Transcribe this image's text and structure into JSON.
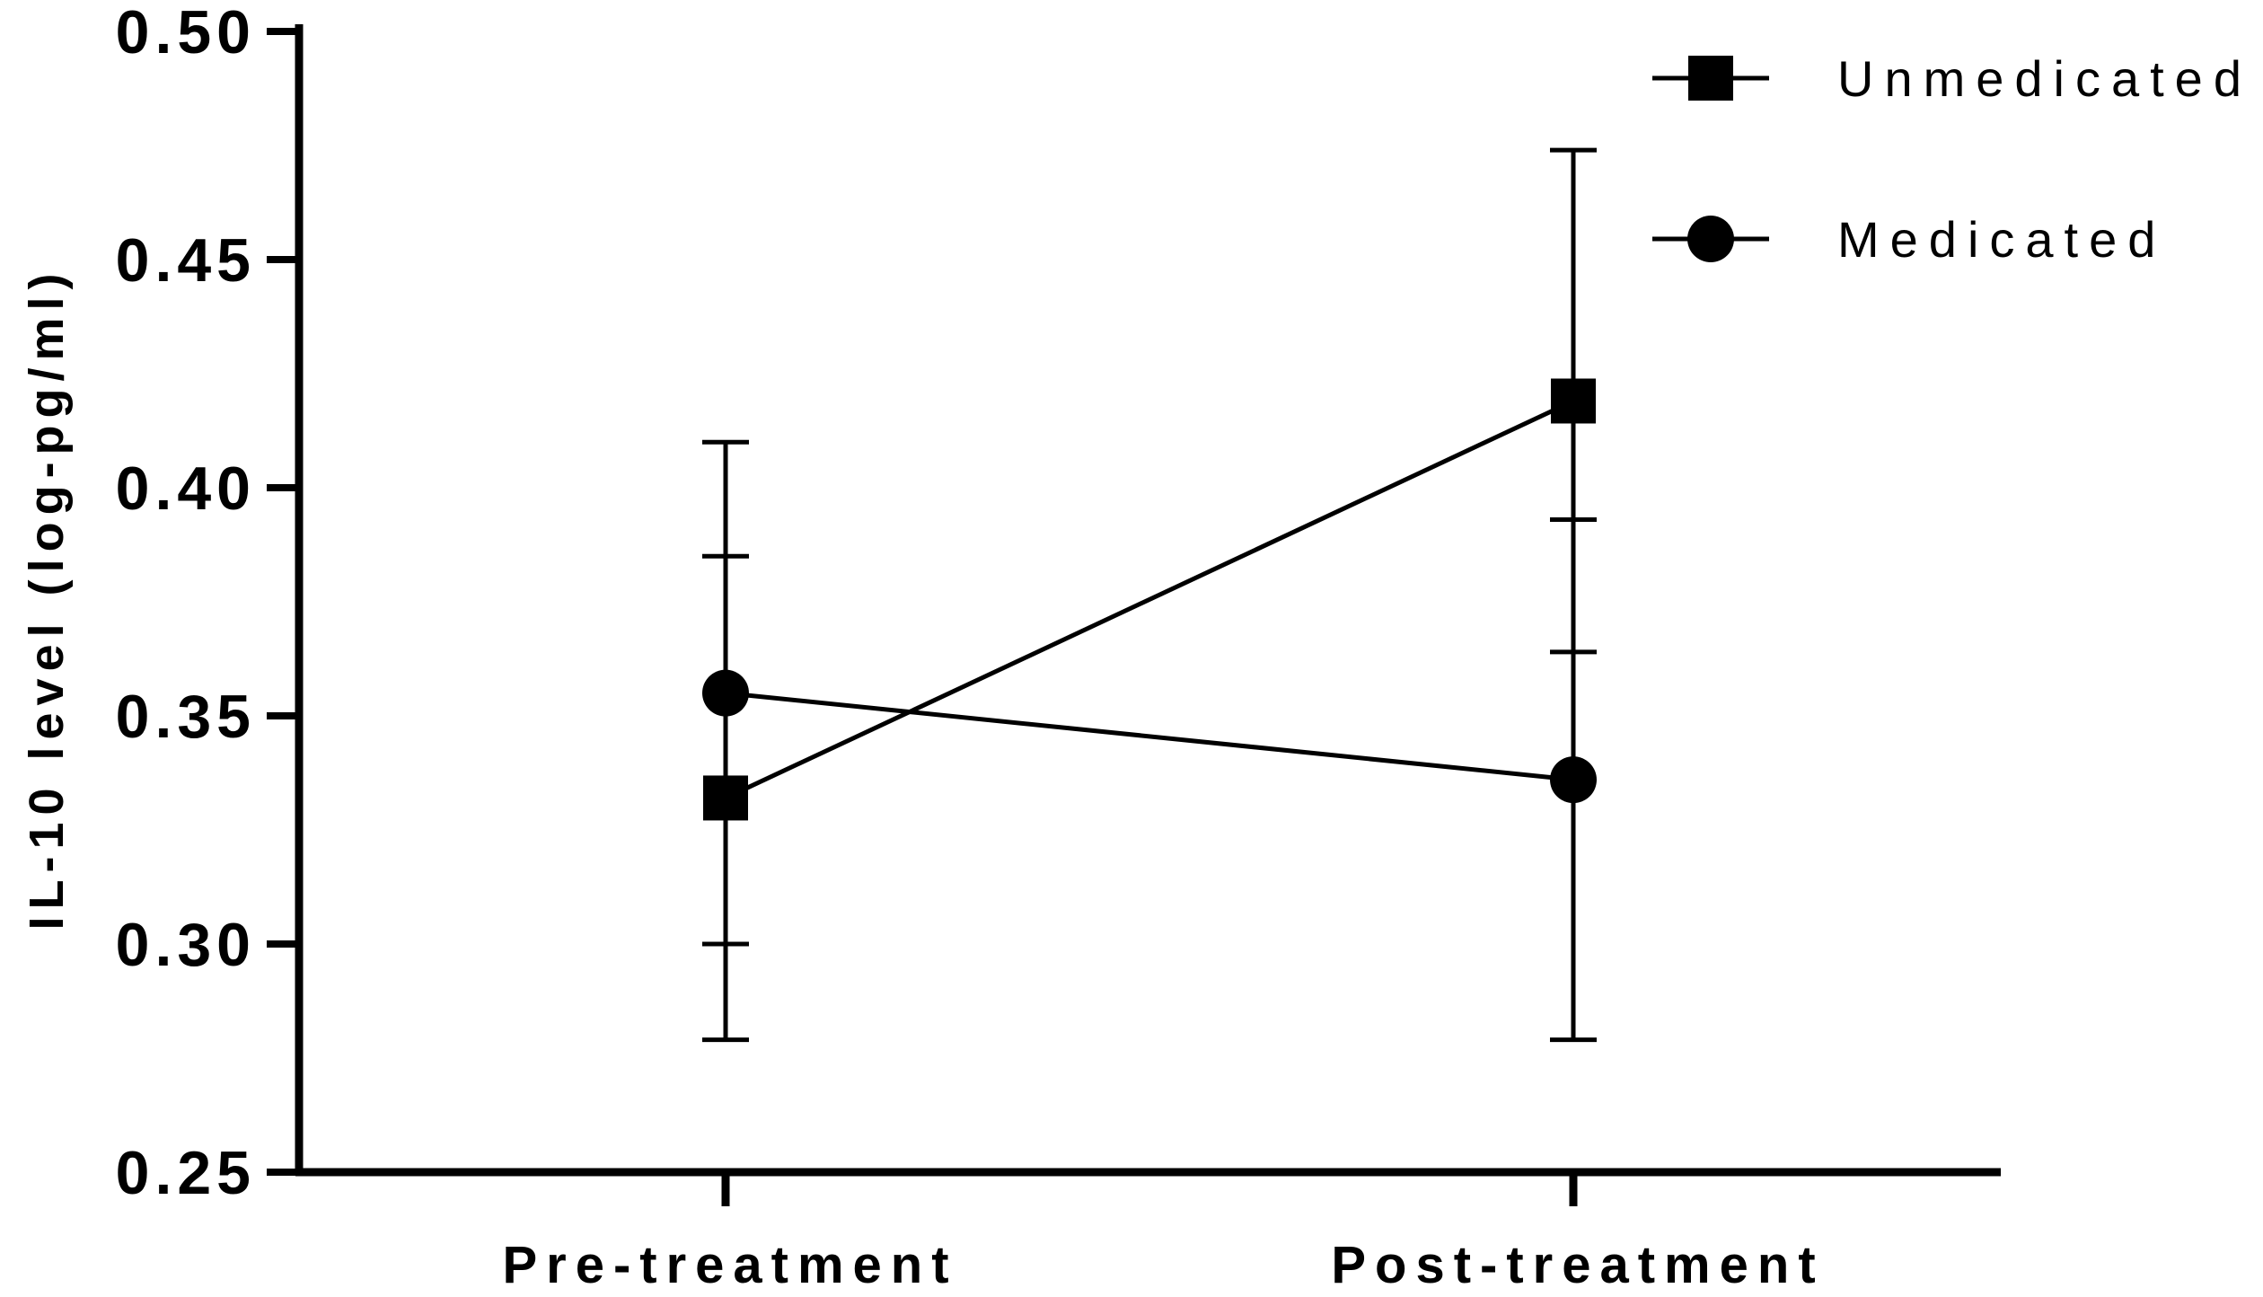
{
  "chart_data": {
    "type": "line",
    "title": "",
    "xlabel": "",
    "ylabel": "IL-10 level (log-pg/ml)",
    "categories": [
      "Pre-treatment",
      "Post-treatment"
    ],
    "ylim": [
      0.25,
      0.5
    ],
    "yticks": [
      "0.25",
      "0.30",
      "0.35",
      "0.40",
      "0.45",
      "0.50"
    ],
    "grid": false,
    "legend_position": "top-right",
    "series": [
      {
        "name": "Unmedicated",
        "marker": "square",
        "color": "#000000",
        "values": [
          0.332,
          0.419
        ],
        "error_low": [
          0.279,
          0.364
        ],
        "error_high": [
          0.385,
          0.474
        ]
      },
      {
        "name": "Medicated",
        "marker": "circle",
        "color": "#000000",
        "values": [
          0.355,
          0.336
        ],
        "error_low": [
          0.3,
          0.279
        ],
        "error_high": [
          0.41,
          0.393
        ]
      }
    ]
  }
}
